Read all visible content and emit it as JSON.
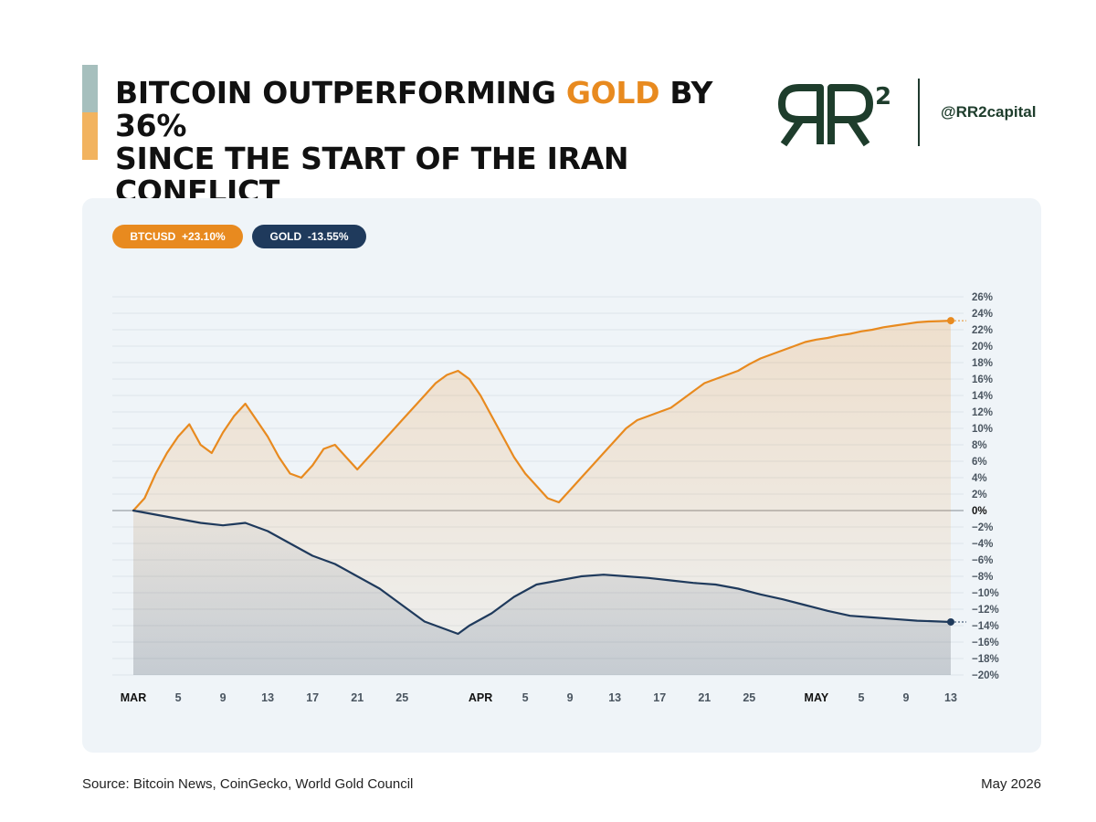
{
  "header": {
    "title_line1_a": "BITCOIN OUTPERFORMING ",
    "title_line1_highlight": "GOLD",
    "title_line1_b": " BY 36%",
    "title_line2": "SINCE THE START OF THE IRAN CONFLICT",
    "handle": "@RR2capital",
    "logo_text": "RR",
    "logo_superscript": "2"
  },
  "legend": {
    "btc_label": "BTCUSD  +23.10%",
    "gold_label": "GOLD  -13.55%"
  },
  "footer": {
    "source": "Source: Bitcoin News, CoinGecko, World Gold Council",
    "date": "May 2026"
  },
  "colors": {
    "btc": "#e88a1f",
    "gold": "#1f3a5c",
    "accent_top": "#a6bfbd",
    "accent_bottom": "#f2b35f",
    "logo": "#1e3d2c"
  },
  "chart_data": {
    "type": "line",
    "x_tick_labels": [
      {
        "day": 0,
        "label": "MAR",
        "bold": true
      },
      {
        "day": 4,
        "label": "5"
      },
      {
        "day": 8,
        "label": "9"
      },
      {
        "day": 12,
        "label": "13"
      },
      {
        "day": 16,
        "label": "17"
      },
      {
        "day": 20,
        "label": "21"
      },
      {
        "day": 24,
        "label": "25"
      },
      {
        "day": 31,
        "label": "APR",
        "bold": true
      },
      {
        "day": 35,
        "label": "5"
      },
      {
        "day": 39,
        "label": "9"
      },
      {
        "day": 43,
        "label": "13"
      },
      {
        "day": 47,
        "label": "17"
      },
      {
        "day": 51,
        "label": "21"
      },
      {
        "day": 55,
        "label": "25"
      },
      {
        "day": 61,
        "label": "MAY",
        "bold": true
      },
      {
        "day": 65,
        "label": "5"
      },
      {
        "day": 69,
        "label": "9"
      },
      {
        "day": 73,
        "label": "13"
      }
    ],
    "y_ticks": [
      26,
      24,
      22,
      20,
      18,
      16,
      14,
      12,
      10,
      8,
      6,
      4,
      2,
      0,
      -2,
      -4,
      -6,
      -8,
      -10,
      -12,
      -14,
      -16,
      -18,
      -20
    ],
    "y_tick_labels": [
      "26%",
      "24%",
      "22%",
      "20%",
      "18%",
      "16%",
      "14%",
      "12%",
      "10%",
      "8%",
      "6%",
      "4%",
      "2%",
      "0%",
      "−2%",
      "−4%",
      "−6%",
      "−8%",
      "−10%",
      "−12%",
      "−14%",
      "−16%",
      "−18%",
      "−20%"
    ],
    "ylim": [
      -20,
      26
    ],
    "xlim": [
      0,
      73
    ],
    "grid": true,
    "series": [
      {
        "name": "BTCUSD",
        "color": "#e88a1f",
        "points": [
          [
            0,
            0
          ],
          [
            1,
            1.5
          ],
          [
            2,
            4.5
          ],
          [
            3,
            7
          ],
          [
            4,
            9
          ],
          [
            5,
            10.5
          ],
          [
            6,
            8
          ],
          [
            7,
            7
          ],
          [
            8,
            9.5
          ],
          [
            9,
            11.5
          ],
          [
            10,
            13
          ],
          [
            11,
            11
          ],
          [
            12,
            9
          ],
          [
            13,
            6.5
          ],
          [
            14,
            4.5
          ],
          [
            15,
            4
          ],
          [
            16,
            5.5
          ],
          [
            17,
            7.5
          ],
          [
            18,
            8
          ],
          [
            19,
            6.5
          ],
          [
            20,
            5
          ],
          [
            21,
            6.5
          ],
          [
            22,
            8
          ],
          [
            23,
            9.5
          ],
          [
            24,
            11
          ],
          [
            25,
            12.5
          ],
          [
            26,
            14
          ],
          [
            27,
            15.5
          ],
          [
            28,
            16.5
          ],
          [
            29,
            17
          ],
          [
            30,
            16
          ],
          [
            31,
            14
          ],
          [
            32,
            11.5
          ],
          [
            33,
            9
          ],
          [
            34,
            6.5
          ],
          [
            35,
            4.5
          ],
          [
            36,
            3
          ],
          [
            37,
            1.5
          ],
          [
            38,
            1
          ],
          [
            39,
            2.5
          ],
          [
            40,
            4
          ],
          [
            41,
            5.5
          ],
          [
            42,
            7
          ],
          [
            43,
            8.5
          ],
          [
            44,
            10
          ],
          [
            45,
            11
          ],
          [
            46,
            11.5
          ],
          [
            47,
            12
          ],
          [
            48,
            12.5
          ],
          [
            49,
            13.5
          ],
          [
            50,
            14.5
          ],
          [
            51,
            15.5
          ],
          [
            52,
            16
          ],
          [
            53,
            16.5
          ],
          [
            54,
            17
          ],
          [
            55,
            17.8
          ],
          [
            56,
            18.5
          ],
          [
            57,
            19
          ],
          [
            58,
            19.5
          ],
          [
            59,
            20
          ],
          [
            60,
            20.5
          ],
          [
            61,
            20.8
          ],
          [
            62,
            21
          ],
          [
            63,
            21.3
          ],
          [
            64,
            21.5
          ],
          [
            65,
            21.8
          ],
          [
            66,
            22
          ],
          [
            67,
            22.3
          ],
          [
            68,
            22.5
          ],
          [
            69,
            22.7
          ],
          [
            70,
            22.9
          ],
          [
            71,
            23
          ],
          [
            72,
            23.05
          ],
          [
            73,
            23.1
          ]
        ]
      },
      {
        "name": "GOLD",
        "color": "#1f3a5c",
        "points": [
          [
            0,
            0
          ],
          [
            2,
            -0.5
          ],
          [
            4,
            -1
          ],
          [
            6,
            -1.5
          ],
          [
            8,
            -1.8
          ],
          [
            10,
            -1.5
          ],
          [
            12,
            -2.5
          ],
          [
            14,
            -4
          ],
          [
            16,
            -5.5
          ],
          [
            18,
            -6.5
          ],
          [
            20,
            -8
          ],
          [
            22,
            -9.5
          ],
          [
            24,
            -11.5
          ],
          [
            26,
            -13.5
          ],
          [
            28,
            -14.5
          ],
          [
            29,
            -15
          ],
          [
            30,
            -14
          ],
          [
            32,
            -12.5
          ],
          [
            34,
            -10.5
          ],
          [
            36,
            -9
          ],
          [
            38,
            -8.5
          ],
          [
            40,
            -8
          ],
          [
            42,
            -7.8
          ],
          [
            44,
            -8
          ],
          [
            46,
            -8.2
          ],
          [
            48,
            -8.5
          ],
          [
            50,
            -8.8
          ],
          [
            52,
            -9
          ],
          [
            54,
            -9.5
          ],
          [
            56,
            -10.2
          ],
          [
            58,
            -10.8
          ],
          [
            60,
            -11.5
          ],
          [
            62,
            -12.2
          ],
          [
            64,
            -12.8
          ],
          [
            66,
            -13
          ],
          [
            68,
            -13.2
          ],
          [
            70,
            -13.4
          ],
          [
            72,
            -13.5
          ],
          [
            73,
            -13.55
          ]
        ]
      }
    ]
  }
}
